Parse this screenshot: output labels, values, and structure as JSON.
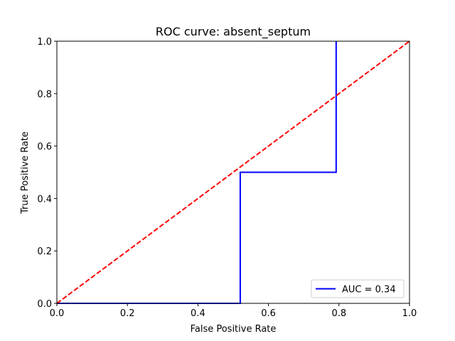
{
  "chart_data": {
    "type": "line",
    "title": "ROC curve: absent_septum",
    "xlabel": "False Positive Rate",
    "ylabel": "True Positive Rate",
    "xlim": [
      0,
      1
    ],
    "ylim": [
      0,
      1
    ],
    "xticks": [
      0,
      0.2,
      0.4,
      0.6,
      0.8,
      1
    ],
    "yticks": [
      0,
      0.2,
      0.4,
      0.6,
      0.8,
      1
    ],
    "xtick_labels": [
      "0.0",
      "0.2",
      "0.4",
      "0.6",
      "0.8",
      "1.0"
    ],
    "ytick_labels": [
      "0.0",
      "0.2",
      "0.4",
      "0.6",
      "0.8",
      "1.0"
    ],
    "grid": false,
    "legend_position": "lower-right",
    "series": [
      {
        "name": "AUC = 0.34",
        "color": "#0000ff",
        "style": "solid",
        "x": [
          0.0,
          0.52,
          0.52,
          0.792,
          0.792
        ],
        "y": [
          0.0,
          0.0,
          0.5,
          0.5,
          1.0
        ]
      },
      {
        "color": "#ff0000",
        "style": "dashed",
        "x": [
          0.0,
          1.0
        ],
        "y": [
          0.0,
          1.0
        ]
      }
    ]
  }
}
